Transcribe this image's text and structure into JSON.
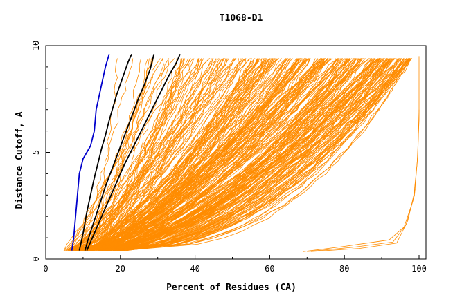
{
  "chart_data": {
    "type": "line",
    "title": "T1068-D1",
    "xlabel": "Percent of Residues (CA)",
    "ylabel": "Distance Cutoff, A",
    "xlim": [
      0,
      100
    ],
    "ylim": [
      0,
      10
    ],
    "xticks": [
      "0",
      "20",
      "40",
      "60",
      "80",
      "100"
    ],
    "yticks": [
      "0",
      "5",
      "10"
    ],
    "grid": false,
    "colors": {
      "models": "#ff8c00",
      "highlighted": "#000000",
      "best": "#0000cc"
    },
    "highlighted_series": [
      {
        "x": [
          9,
          10,
          11,
          12,
          13,
          14,
          15,
          16,
          17,
          18,
          19,
          20,
          21,
          22,
          23
        ],
        "y": [
          0.4,
          1.2,
          2.2,
          3.0,
          3.8,
          4.5,
          5.2,
          5.8,
          6.5,
          7.1,
          7.7,
          8.2,
          8.7,
          9.2,
          9.6
        ]
      },
      {
        "x": [
          10.5,
          11.5,
          13,
          14.5,
          16,
          17.5,
          19,
          20.5,
          22,
          23.5,
          25,
          26.5,
          28,
          29
        ],
        "y": [
          0.4,
          1.0,
          1.8,
          2.6,
          3.4,
          4.1,
          4.8,
          5.5,
          6.2,
          6.9,
          7.6,
          8.2,
          8.9,
          9.6
        ]
      },
      {
        "x": [
          11,
          13,
          15,
          17,
          19,
          21,
          23,
          25,
          27,
          29,
          31,
          33,
          35,
          36
        ],
        "y": [
          0.4,
          1.2,
          2.0,
          2.8,
          3.6,
          4.4,
          5.1,
          5.8,
          6.5,
          7.2,
          7.9,
          8.6,
          9.2,
          9.6
        ]
      }
    ],
    "best_series": {
      "x": [
        7,
        7.5,
        8,
        8.5,
        9,
        10,
        11,
        12,
        13,
        13.5,
        14,
        15,
        16,
        17
      ],
      "y": [
        0.4,
        1.0,
        2.0,
        3.0,
        4.0,
        4.7,
        5.0,
        5.3,
        6.0,
        7.0,
        7.4,
        8.2,
        9.0,
        9.6
      ]
    }
  }
}
